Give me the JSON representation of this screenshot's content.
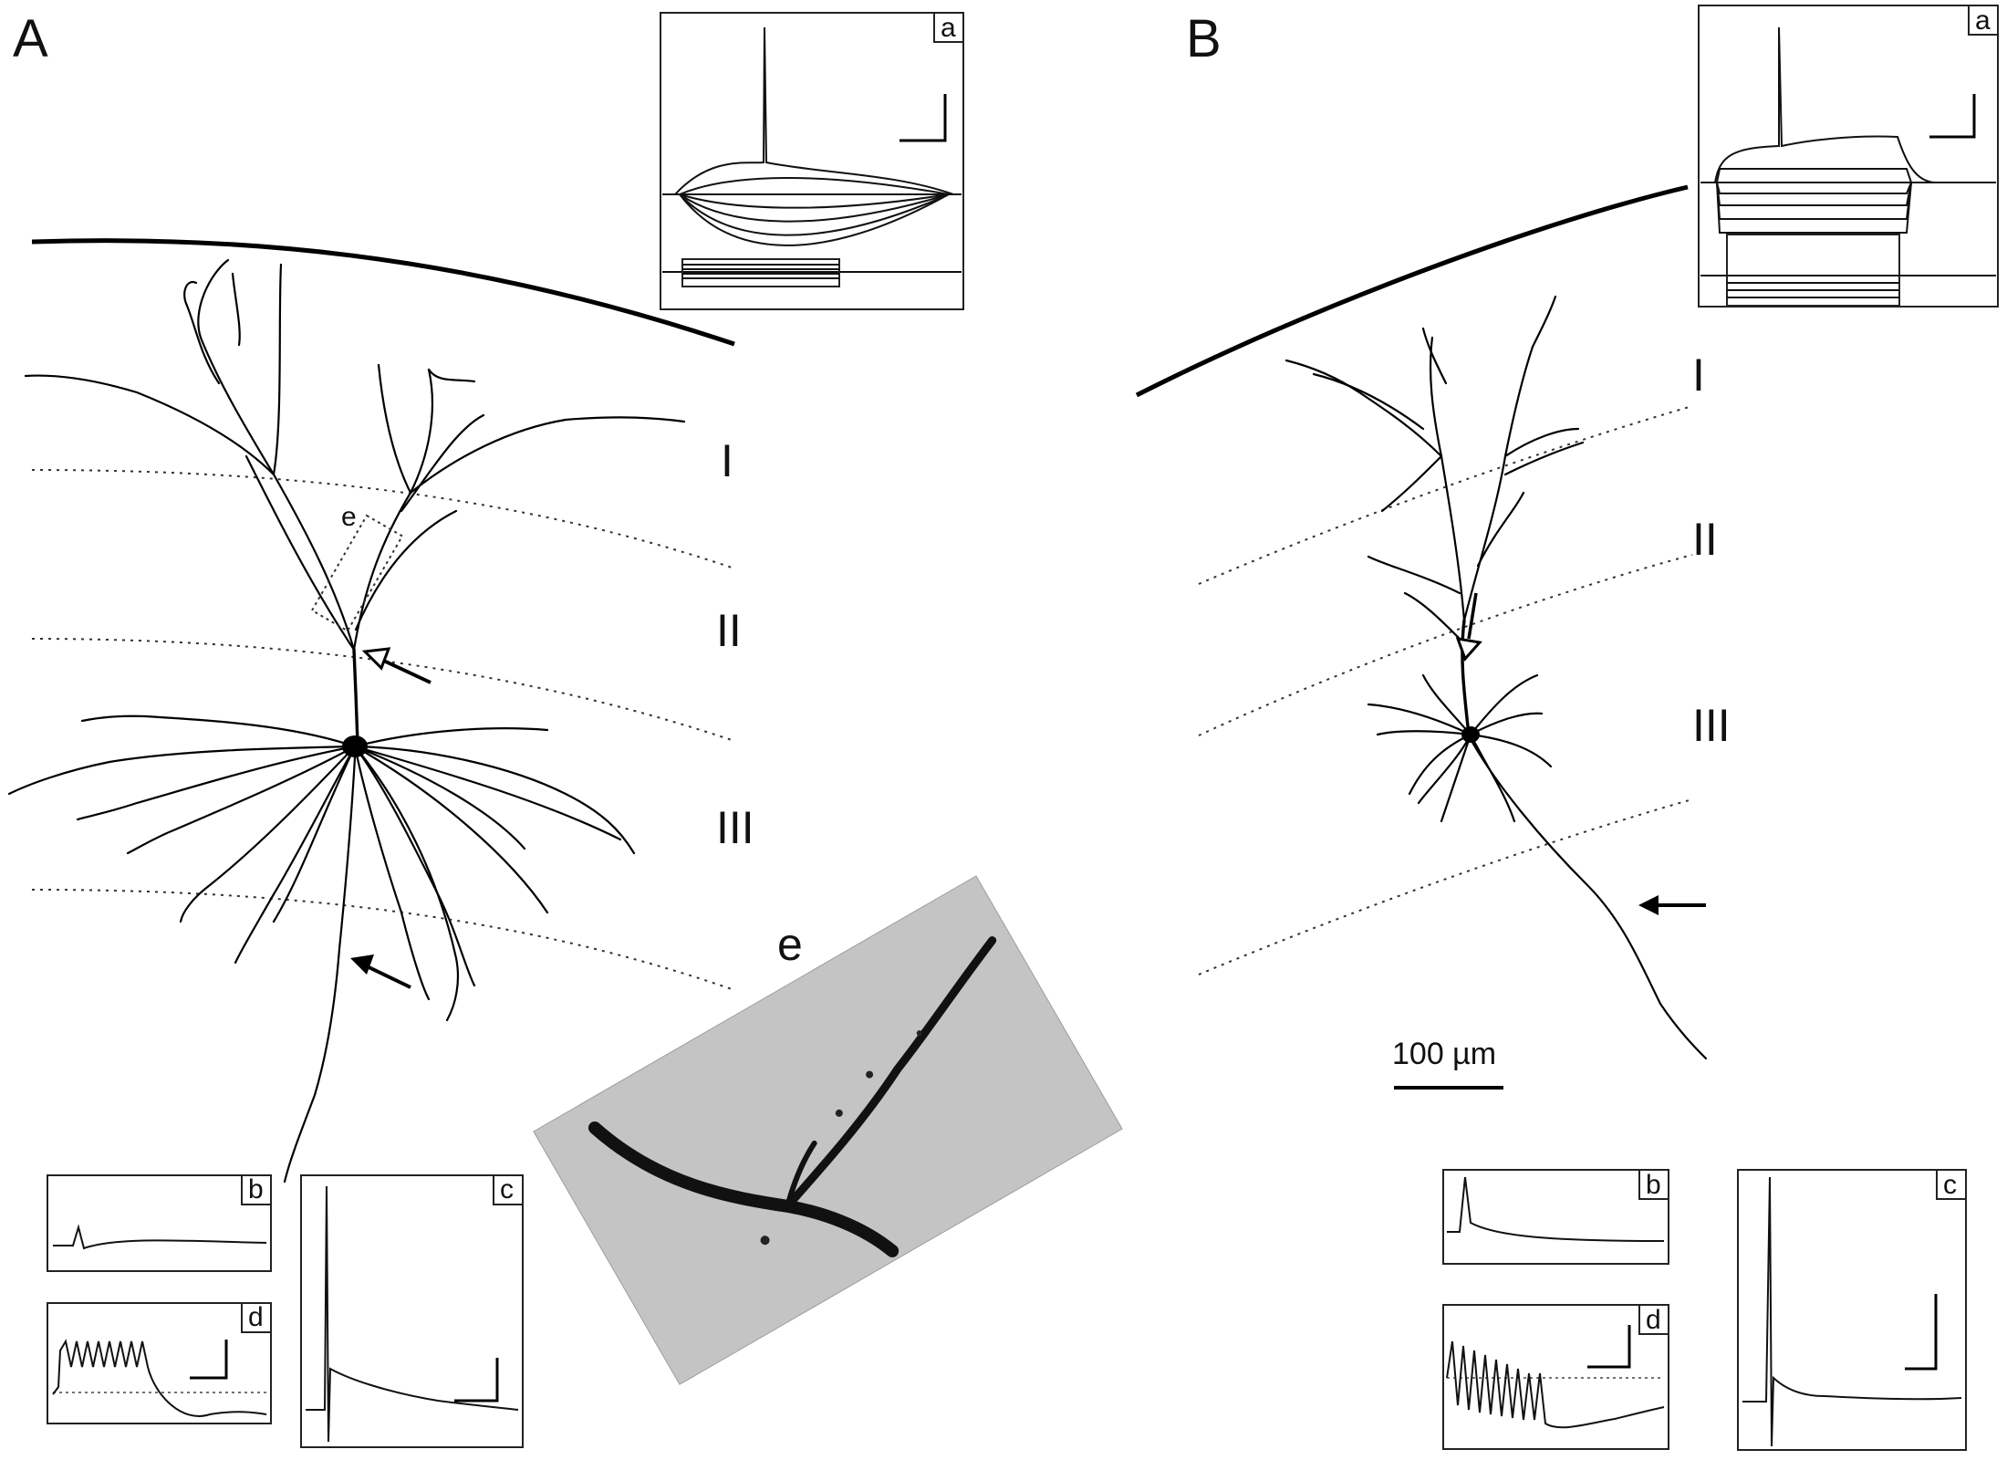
{
  "panels": {
    "A": {
      "label": "A",
      "layers": [
        "I",
        "II",
        "III"
      ],
      "roi_label": "e",
      "insets": [
        "a",
        "b",
        "c",
        "d"
      ]
    },
    "B": {
      "label": "B",
      "layers": [
        "I",
        "II",
        "III"
      ],
      "insets": [
        "a",
        "b",
        "c",
        "d"
      ],
      "scale_bar": "100 µm"
    }
  },
  "photo": {
    "label": "e"
  }
}
